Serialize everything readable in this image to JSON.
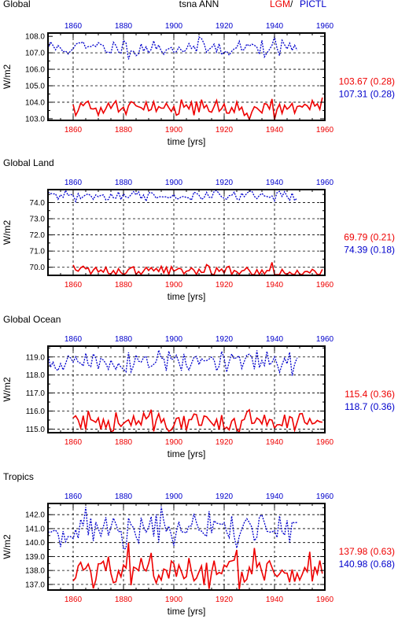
{
  "header": {
    "title_left": "Global",
    "title_center": "tsna ANN",
    "legend_lgm": "LGM",
    "legend_sep": " / ",
    "legend_pictl": "PICTL",
    "color_lgm": "#ee0000",
    "color_pictl": "#0000cc"
  },
  "chart_data": [
    {
      "type": "line",
      "title": "Global",
      "xlabel": "time [yrs]",
      "ylabel": "W/m2",
      "xlim": [
        1850,
        1960
      ],
      "ylim": [
        102.9,
        108.2
      ],
      "yticks": [
        "103.0",
        "103.5",
        "104.0",
        "104.5",
        "105.0",
        "105.5",
        "106.0",
        "106.5",
        "107.0",
        "107.5",
        "108.0"
      ],
      "ytick_labeled": [
        true,
        false,
        true,
        false,
        true,
        false,
        true,
        false,
        true,
        false,
        true
      ],
      "xticks_bottom": [
        "1860",
        "1880",
        "1900",
        "1920",
        "1940",
        "1960"
      ],
      "xticks_top": [
        "1860",
        "1880",
        "1900",
        "1920",
        "1940",
        "1960"
      ],
      "grid_y": [
        104.0,
        105.0,
        106.0,
        107.0
      ],
      "stats": {
        "lgm": "103.67 (0.28)",
        "pictl": "107.31 (0.28)"
      },
      "series": [
        {
          "key": "pictl",
          "x_start": 1850,
          "mean": 107.31,
          "sd": 0.28,
          "n": 100,
          "seed": 11
        },
        {
          "key": "lgm",
          "x_start": 1860,
          "mean": 103.67,
          "sd": 0.28,
          "n": 100,
          "seed": 21
        }
      ]
    },
    {
      "type": "line",
      "title": "Global Land",
      "xlabel": "time [yrs]",
      "ylabel": "W/m2",
      "xlim": [
        1850,
        1960
      ],
      "ylim": [
        69.5,
        74.8
      ],
      "yticks": [
        "70.0",
        "70.5",
        "71.0",
        "71.5",
        "72.0",
        "72.5",
        "73.0",
        "73.5",
        "74.0",
        "74.5"
      ],
      "ytick_labeled": [
        true,
        false,
        true,
        false,
        true,
        false,
        true,
        false,
        true,
        false
      ],
      "xticks_bottom": [
        "1860",
        "1880",
        "1900",
        "1920",
        "1940",
        "1960"
      ],
      "xticks_top": [
        "1860",
        "1880",
        "1900",
        "1920",
        "1940",
        "1960"
      ],
      "grid_y": [
        70.0,
        71.0,
        72.0,
        73.0,
        74.0
      ],
      "stats": {
        "lgm": "69.79 (0.21)",
        "pictl": "74.39 (0.18)"
      },
      "series": [
        {
          "key": "pictl",
          "x_start": 1850,
          "mean": 74.39,
          "sd": 0.18,
          "n": 100,
          "seed": 31
        },
        {
          "key": "lgm",
          "x_start": 1860,
          "mean": 69.79,
          "sd": 0.21,
          "n": 100,
          "seed": 41
        }
      ]
    },
    {
      "type": "line",
      "title": "Global Ocean",
      "xlabel": "time [yrs]",
      "ylabel": "W/m2",
      "xlim": [
        1850,
        1960
      ],
      "ylim": [
        114.8,
        119.6
      ],
      "yticks": [
        "115.0",
        "115.5",
        "116.0",
        "116.5",
        "117.0",
        "117.5",
        "118.0",
        "118.5",
        "119.0",
        "119.5"
      ],
      "ytick_labeled": [
        true,
        false,
        true,
        false,
        true,
        false,
        true,
        false,
        true,
        false
      ],
      "xticks_bottom": [
        "1860",
        "1880",
        "1900",
        "1920",
        "1940",
        "1960"
      ],
      "xticks_top": [
        "1860",
        "1880",
        "1900",
        "1920",
        "1940",
        "1960"
      ],
      "grid_y": [
        115.0,
        116.0,
        117.0,
        118.0,
        119.0
      ],
      "stats": {
        "lgm": "115.4 (0.36)",
        "pictl": "118.7 (0.36)"
      },
      "series": [
        {
          "key": "pictl",
          "x_start": 1850,
          "mean": 118.7,
          "sd": 0.36,
          "n": 100,
          "seed": 51
        },
        {
          "key": "lgm",
          "x_start": 1860,
          "mean": 115.4,
          "sd": 0.36,
          "n": 100,
          "seed": 61
        }
      ]
    },
    {
      "type": "line",
      "title": "Tropics",
      "xlabel": "time [yrs]",
      "ylabel": "W/m2",
      "xlim": [
        1850,
        1960
      ],
      "ylim": [
        136.6,
        142.8
      ],
      "yticks": [
        "137.0",
        "137.5",
        "138.0",
        "138.5",
        "139.0",
        "139.5",
        "140.0",
        "140.5",
        "141.0",
        "141.5",
        "142.0",
        "142.5"
      ],
      "ytick_labeled": [
        true,
        false,
        true,
        false,
        true,
        false,
        true,
        false,
        true,
        false,
        true,
        false
      ],
      "xticks_bottom": [
        "1860",
        "1880",
        "1900",
        "1920",
        "1940",
        "1960"
      ],
      "xticks_top": [
        "1860",
        "1880",
        "1900",
        "1920",
        "1940",
        "1960"
      ],
      "grid_y": [
        137.0,
        138.0,
        139.0,
        140.0,
        141.0,
        142.0
      ],
      "stats": {
        "lgm": "137.98 (0.63)",
        "pictl": "140.98 (0.68)"
      },
      "series": [
        {
          "key": "pictl",
          "x_start": 1850,
          "mean": 140.98,
          "sd": 0.68,
          "n": 100,
          "seed": 71
        },
        {
          "key": "lgm",
          "x_start": 1860,
          "mean": 137.98,
          "sd": 0.63,
          "n": 100,
          "seed": 81
        }
      ]
    }
  ]
}
